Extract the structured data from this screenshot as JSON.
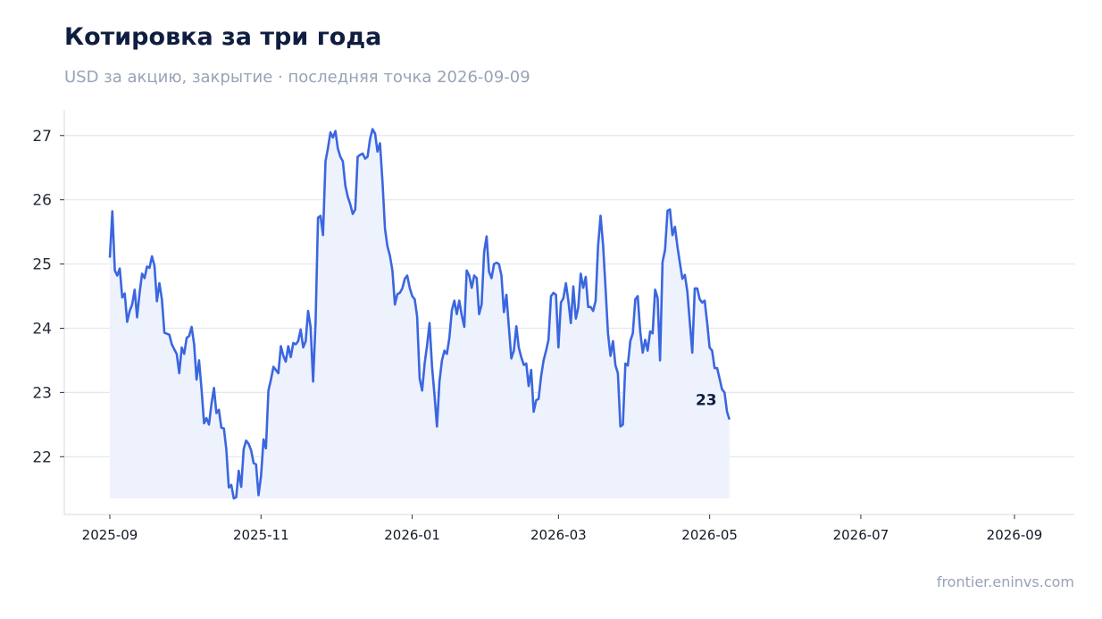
{
  "title": "Котировка за три года",
  "subtitle": "USD за акцию, закрытие · последняя точка 2026-09-09",
  "source": "frontier.eninvs.com",
  "colors": {
    "line": "#3a66e0",
    "fill": "#eef2fd",
    "grid": "#e3e7f0",
    "axis": "#d6dae2"
  },
  "chart_data": {
    "type": "area",
    "title": "Котировка за три года",
    "subtitle": "USD за акцию, закрытие · последняя точка 2026-09-09",
    "xlabel": "",
    "ylabel": "",
    "x_range": [
      "2025-08-22",
      "2026-09-16"
    ],
    "ylim": [
      21.1,
      27.4
    ],
    "y_ticks": [
      22,
      23,
      24,
      25,
      26,
      27
    ],
    "x_ticks": [
      "2025-09",
      "2025-11",
      "2026-01",
      "2026-03",
      "2026-05",
      "2026-07",
      "2026-09"
    ],
    "grid": "horizontal",
    "end_label": "23",
    "series": [
      {
        "points": [
          [
            "2025-09-01",
            25.1
          ],
          [
            "2025-09-02",
            25.82
          ],
          [
            "2025-09-03",
            24.9
          ],
          [
            "2025-09-04",
            24.82
          ],
          [
            "2025-09-05",
            24.93
          ],
          [
            "2025-09-06",
            24.48
          ],
          [
            "2025-09-07",
            24.54
          ],
          [
            "2025-09-08",
            24.1
          ],
          [
            "2025-09-09",
            24.27
          ],
          [
            "2025-09-10",
            24.37
          ],
          [
            "2025-09-11",
            24.6
          ],
          [
            "2025-09-12",
            24.17
          ],
          [
            "2025-09-13",
            24.55
          ],
          [
            "2025-09-14",
            24.85
          ],
          [
            "2025-09-15",
            24.78
          ],
          [
            "2025-09-16",
            24.96
          ],
          [
            "2025-09-17",
            24.94
          ],
          [
            "2025-09-18",
            25.12
          ],
          [
            "2025-09-19",
            24.97
          ],
          [
            "2025-09-20",
            24.42
          ],
          [
            "2025-09-21",
            24.7
          ],
          [
            "2025-09-22",
            24.45
          ],
          [
            "2025-09-23",
            23.93
          ],
          [
            "2025-09-25",
            23.9
          ],
          [
            "2025-09-26",
            23.75
          ],
          [
            "2025-09-27",
            23.67
          ],
          [
            "2025-09-28",
            23.6
          ],
          [
            "2025-09-29",
            23.3
          ],
          [
            "2025-09-30",
            23.7
          ],
          [
            "2025-10-01",
            23.6
          ],
          [
            "2025-10-02",
            23.85
          ],
          [
            "2025-10-03",
            23.88
          ],
          [
            "2025-10-04",
            24.02
          ],
          [
            "2025-10-05",
            23.75
          ],
          [
            "2025-10-06",
            23.2
          ],
          [
            "2025-10-07",
            23.5
          ],
          [
            "2025-10-08",
            23.05
          ],
          [
            "2025-10-09",
            22.52
          ],
          [
            "2025-10-10",
            22.6
          ],
          [
            "2025-10-11",
            22.5
          ],
          [
            "2025-10-12",
            22.82
          ],
          [
            "2025-10-13",
            23.07
          ],
          [
            "2025-10-14",
            22.68
          ],
          [
            "2025-10-15",
            22.73
          ],
          [
            "2025-10-16",
            22.45
          ],
          [
            "2025-10-17",
            22.44
          ],
          [
            "2025-10-18",
            22.12
          ],
          [
            "2025-10-19",
            21.52
          ],
          [
            "2025-10-20",
            21.56
          ],
          [
            "2025-10-21",
            21.35
          ],
          [
            "2025-10-22",
            21.37
          ],
          [
            "2025-10-23",
            21.78
          ],
          [
            "2025-10-24",
            21.53
          ],
          [
            "2025-10-25",
            22.12
          ],
          [
            "2025-10-26",
            22.25
          ],
          [
            "2025-10-27",
            22.2
          ],
          [
            "2025-10-28",
            22.1
          ],
          [
            "2025-10-29",
            21.9
          ],
          [
            "2025-10-30",
            21.88
          ],
          [
            "2025-10-31",
            21.4
          ],
          [
            "2025-11-01",
            21.7
          ],
          [
            "2025-11-02",
            22.27
          ],
          [
            "2025-11-03",
            22.13
          ],
          [
            "2025-11-04",
            23.03
          ],
          [
            "2025-11-05",
            23.2
          ],
          [
            "2025-11-06",
            23.4
          ],
          [
            "2025-11-07",
            23.35
          ],
          [
            "2025-11-08",
            23.3
          ],
          [
            "2025-11-09",
            23.72
          ],
          [
            "2025-11-10",
            23.57
          ],
          [
            "2025-11-11",
            23.48
          ],
          [
            "2025-11-12",
            23.72
          ],
          [
            "2025-11-13",
            23.55
          ],
          [
            "2025-11-14",
            23.77
          ],
          [
            "2025-11-15",
            23.75
          ],
          [
            "2025-11-16",
            23.8
          ],
          [
            "2025-11-17",
            23.98
          ],
          [
            "2025-11-18",
            23.7
          ],
          [
            "2025-11-19",
            23.8
          ],
          [
            "2025-11-20",
            24.27
          ],
          [
            "2025-11-21",
            24.02
          ],
          [
            "2025-11-22",
            23.17
          ],
          [
            "2025-11-23",
            24.1
          ],
          [
            "2025-11-24",
            25.72
          ],
          [
            "2025-11-25",
            25.75
          ],
          [
            "2025-11-26",
            25.45
          ],
          [
            "2025-11-27",
            26.6
          ],
          [
            "2025-11-28",
            26.8
          ],
          [
            "2025-11-29",
            27.05
          ],
          [
            "2025-11-30",
            26.97
          ],
          [
            "2025-12-01",
            27.07
          ],
          [
            "2025-12-02",
            26.8
          ],
          [
            "2025-12-03",
            26.67
          ],
          [
            "2025-12-04",
            26.6
          ],
          [
            "2025-12-05",
            26.22
          ],
          [
            "2025-12-06",
            26.05
          ],
          [
            "2025-12-07",
            25.93
          ],
          [
            "2025-12-08",
            25.78
          ],
          [
            "2025-12-09",
            25.85
          ],
          [
            "2025-12-10",
            26.67
          ],
          [
            "2025-12-11",
            26.7
          ],
          [
            "2025-12-12",
            26.72
          ],
          [
            "2025-12-13",
            26.64
          ],
          [
            "2025-12-14",
            26.67
          ],
          [
            "2025-12-15",
            26.95
          ],
          [
            "2025-12-16",
            27.1
          ],
          [
            "2025-12-17",
            27.03
          ],
          [
            "2025-12-18",
            26.75
          ],
          [
            "2025-12-19",
            26.88
          ],
          [
            "2025-12-20",
            26.28
          ],
          [
            "2025-12-21",
            25.55
          ],
          [
            "2025-12-22",
            25.28
          ],
          [
            "2025-12-23",
            25.13
          ],
          [
            "2025-12-24",
            24.9
          ],
          [
            "2025-12-25",
            24.37
          ],
          [
            "2025-12-26",
            24.53
          ],
          [
            "2025-12-27",
            24.55
          ],
          [
            "2025-12-28",
            24.62
          ],
          [
            "2025-12-29",
            24.77
          ],
          [
            "2025-12-30",
            24.82
          ],
          [
            "2025-12-31",
            24.63
          ],
          [
            "2026-01-01",
            24.5
          ],
          [
            "2026-01-02",
            24.45
          ],
          [
            "2026-01-03",
            24.18
          ],
          [
            "2026-01-04",
            23.22
          ],
          [
            "2026-01-05",
            23.03
          ],
          [
            "2026-01-06",
            23.45
          ],
          [
            "2026-01-07",
            23.73
          ],
          [
            "2026-01-08",
            24.08
          ],
          [
            "2026-01-09",
            23.4
          ],
          [
            "2026-01-10",
            22.95
          ],
          [
            "2026-01-11",
            22.47
          ],
          [
            "2026-01-12",
            23.17
          ],
          [
            "2026-01-13",
            23.5
          ],
          [
            "2026-01-14",
            23.65
          ],
          [
            "2026-01-15",
            23.6
          ],
          [
            "2026-01-16",
            23.85
          ],
          [
            "2026-01-17",
            24.28
          ],
          [
            "2026-01-18",
            24.43
          ],
          [
            "2026-01-19",
            24.22
          ],
          [
            "2026-01-20",
            24.43
          ],
          [
            "2026-01-21",
            24.2
          ],
          [
            "2026-01-22",
            24.02
          ],
          [
            "2026-01-23",
            24.9
          ],
          [
            "2026-01-24",
            24.82
          ],
          [
            "2026-01-25",
            24.63
          ],
          [
            "2026-01-26",
            24.82
          ],
          [
            "2026-01-27",
            24.78
          ],
          [
            "2026-01-28",
            24.22
          ],
          [
            "2026-01-29",
            24.37
          ],
          [
            "2026-01-30",
            25.18
          ],
          [
            "2026-01-31",
            25.43
          ],
          [
            "2026-02-01",
            24.88
          ],
          [
            "2026-02-02",
            24.78
          ],
          [
            "2026-02-03",
            25.0
          ],
          [
            "2026-02-04",
            25.02
          ],
          [
            "2026-02-05",
            25.0
          ],
          [
            "2026-02-06",
            24.82
          ],
          [
            "2026-02-07",
            24.25
          ],
          [
            "2026-02-08",
            24.52
          ],
          [
            "2026-02-09",
            24.02
          ],
          [
            "2026-02-10",
            23.53
          ],
          [
            "2026-02-11",
            23.65
          ],
          [
            "2026-02-12",
            24.03
          ],
          [
            "2026-02-13",
            23.7
          ],
          [
            "2026-02-14",
            23.55
          ],
          [
            "2026-02-15",
            23.43
          ],
          [
            "2026-02-16",
            23.45
          ],
          [
            "2026-02-17",
            23.1
          ],
          [
            "2026-02-18",
            23.35
          ],
          [
            "2026-02-19",
            22.7
          ],
          [
            "2026-02-20",
            22.88
          ],
          [
            "2026-02-21",
            22.9
          ],
          [
            "2026-02-22",
            23.25
          ],
          [
            "2026-02-23",
            23.5
          ],
          [
            "2026-02-24",
            23.65
          ],
          [
            "2026-02-25",
            23.82
          ],
          [
            "2026-02-26",
            24.5
          ],
          [
            "2026-02-27",
            24.55
          ],
          [
            "2026-02-28",
            24.52
          ],
          [
            "2026-03-01",
            23.7
          ],
          [
            "2026-03-02",
            24.4
          ],
          [
            "2026-03-03",
            24.47
          ],
          [
            "2026-03-04",
            24.7
          ],
          [
            "2026-03-05",
            24.43
          ],
          [
            "2026-03-06",
            24.08
          ],
          [
            "2026-03-07",
            24.65
          ],
          [
            "2026-03-08",
            24.15
          ],
          [
            "2026-03-09",
            24.32
          ],
          [
            "2026-03-10",
            24.85
          ],
          [
            "2026-03-11",
            24.63
          ],
          [
            "2026-03-12",
            24.8
          ],
          [
            "2026-03-13",
            24.33
          ],
          [
            "2026-03-14",
            24.33
          ],
          [
            "2026-03-15",
            24.27
          ],
          [
            "2026-03-16",
            24.43
          ],
          [
            "2026-03-17",
            25.28
          ],
          [
            "2026-03-18",
            25.75
          ],
          [
            "2026-03-19",
            25.3
          ],
          [
            "2026-03-20",
            24.62
          ],
          [
            "2026-03-21",
            23.92
          ],
          [
            "2026-03-22",
            23.57
          ],
          [
            "2026-03-23",
            23.8
          ],
          [
            "2026-03-24",
            23.42
          ],
          [
            "2026-03-25",
            23.3
          ],
          [
            "2026-03-26",
            22.47
          ],
          [
            "2026-03-27",
            22.5
          ],
          [
            "2026-03-28",
            23.45
          ],
          [
            "2026-03-29",
            23.42
          ],
          [
            "2026-03-30",
            23.8
          ],
          [
            "2026-03-31",
            23.92
          ],
          [
            "2026-04-01",
            24.45
          ],
          [
            "2026-04-02",
            24.5
          ],
          [
            "2026-04-03",
            23.95
          ],
          [
            "2026-04-04",
            23.62
          ],
          [
            "2026-04-05",
            23.82
          ],
          [
            "2026-04-06",
            23.65
          ],
          [
            "2026-04-07",
            23.95
          ],
          [
            "2026-04-08",
            23.92
          ],
          [
            "2026-04-09",
            24.6
          ],
          [
            "2026-04-10",
            24.47
          ],
          [
            "2026-04-11",
            23.5
          ],
          [
            "2026-04-12",
            25.03
          ],
          [
            "2026-04-13",
            25.22
          ],
          [
            "2026-04-14",
            25.83
          ],
          [
            "2026-04-15",
            25.85
          ],
          [
            "2026-04-16",
            25.45
          ],
          [
            "2026-04-17",
            25.58
          ],
          [
            "2026-04-18",
            25.27
          ],
          [
            "2026-04-19",
            25.02
          ],
          [
            "2026-04-20",
            24.77
          ],
          [
            "2026-04-21",
            24.83
          ],
          [
            "2026-04-22",
            24.57
          ],
          [
            "2026-04-23",
            24.1
          ],
          [
            "2026-04-24",
            23.62
          ],
          [
            "2026-04-25",
            24.62
          ],
          [
            "2026-04-26",
            24.62
          ],
          [
            "2026-04-27",
            24.45
          ],
          [
            "2026-04-28",
            24.4
          ],
          [
            "2026-04-29",
            24.43
          ],
          [
            "2026-04-30",
            24.08
          ],
          [
            "2026-05-01",
            23.7
          ],
          [
            "2026-05-02",
            23.65
          ],
          [
            "2026-05-03",
            23.38
          ],
          [
            "2026-05-04",
            23.38
          ],
          [
            "2026-05-05",
            23.22
          ],
          [
            "2026-05-06",
            23.05
          ],
          [
            "2026-05-07",
            23.0
          ],
          [
            "2026-05-08",
            22.7
          ],
          [
            "2026-05-09",
            22.58
          ]
        ]
      }
    ]
  }
}
